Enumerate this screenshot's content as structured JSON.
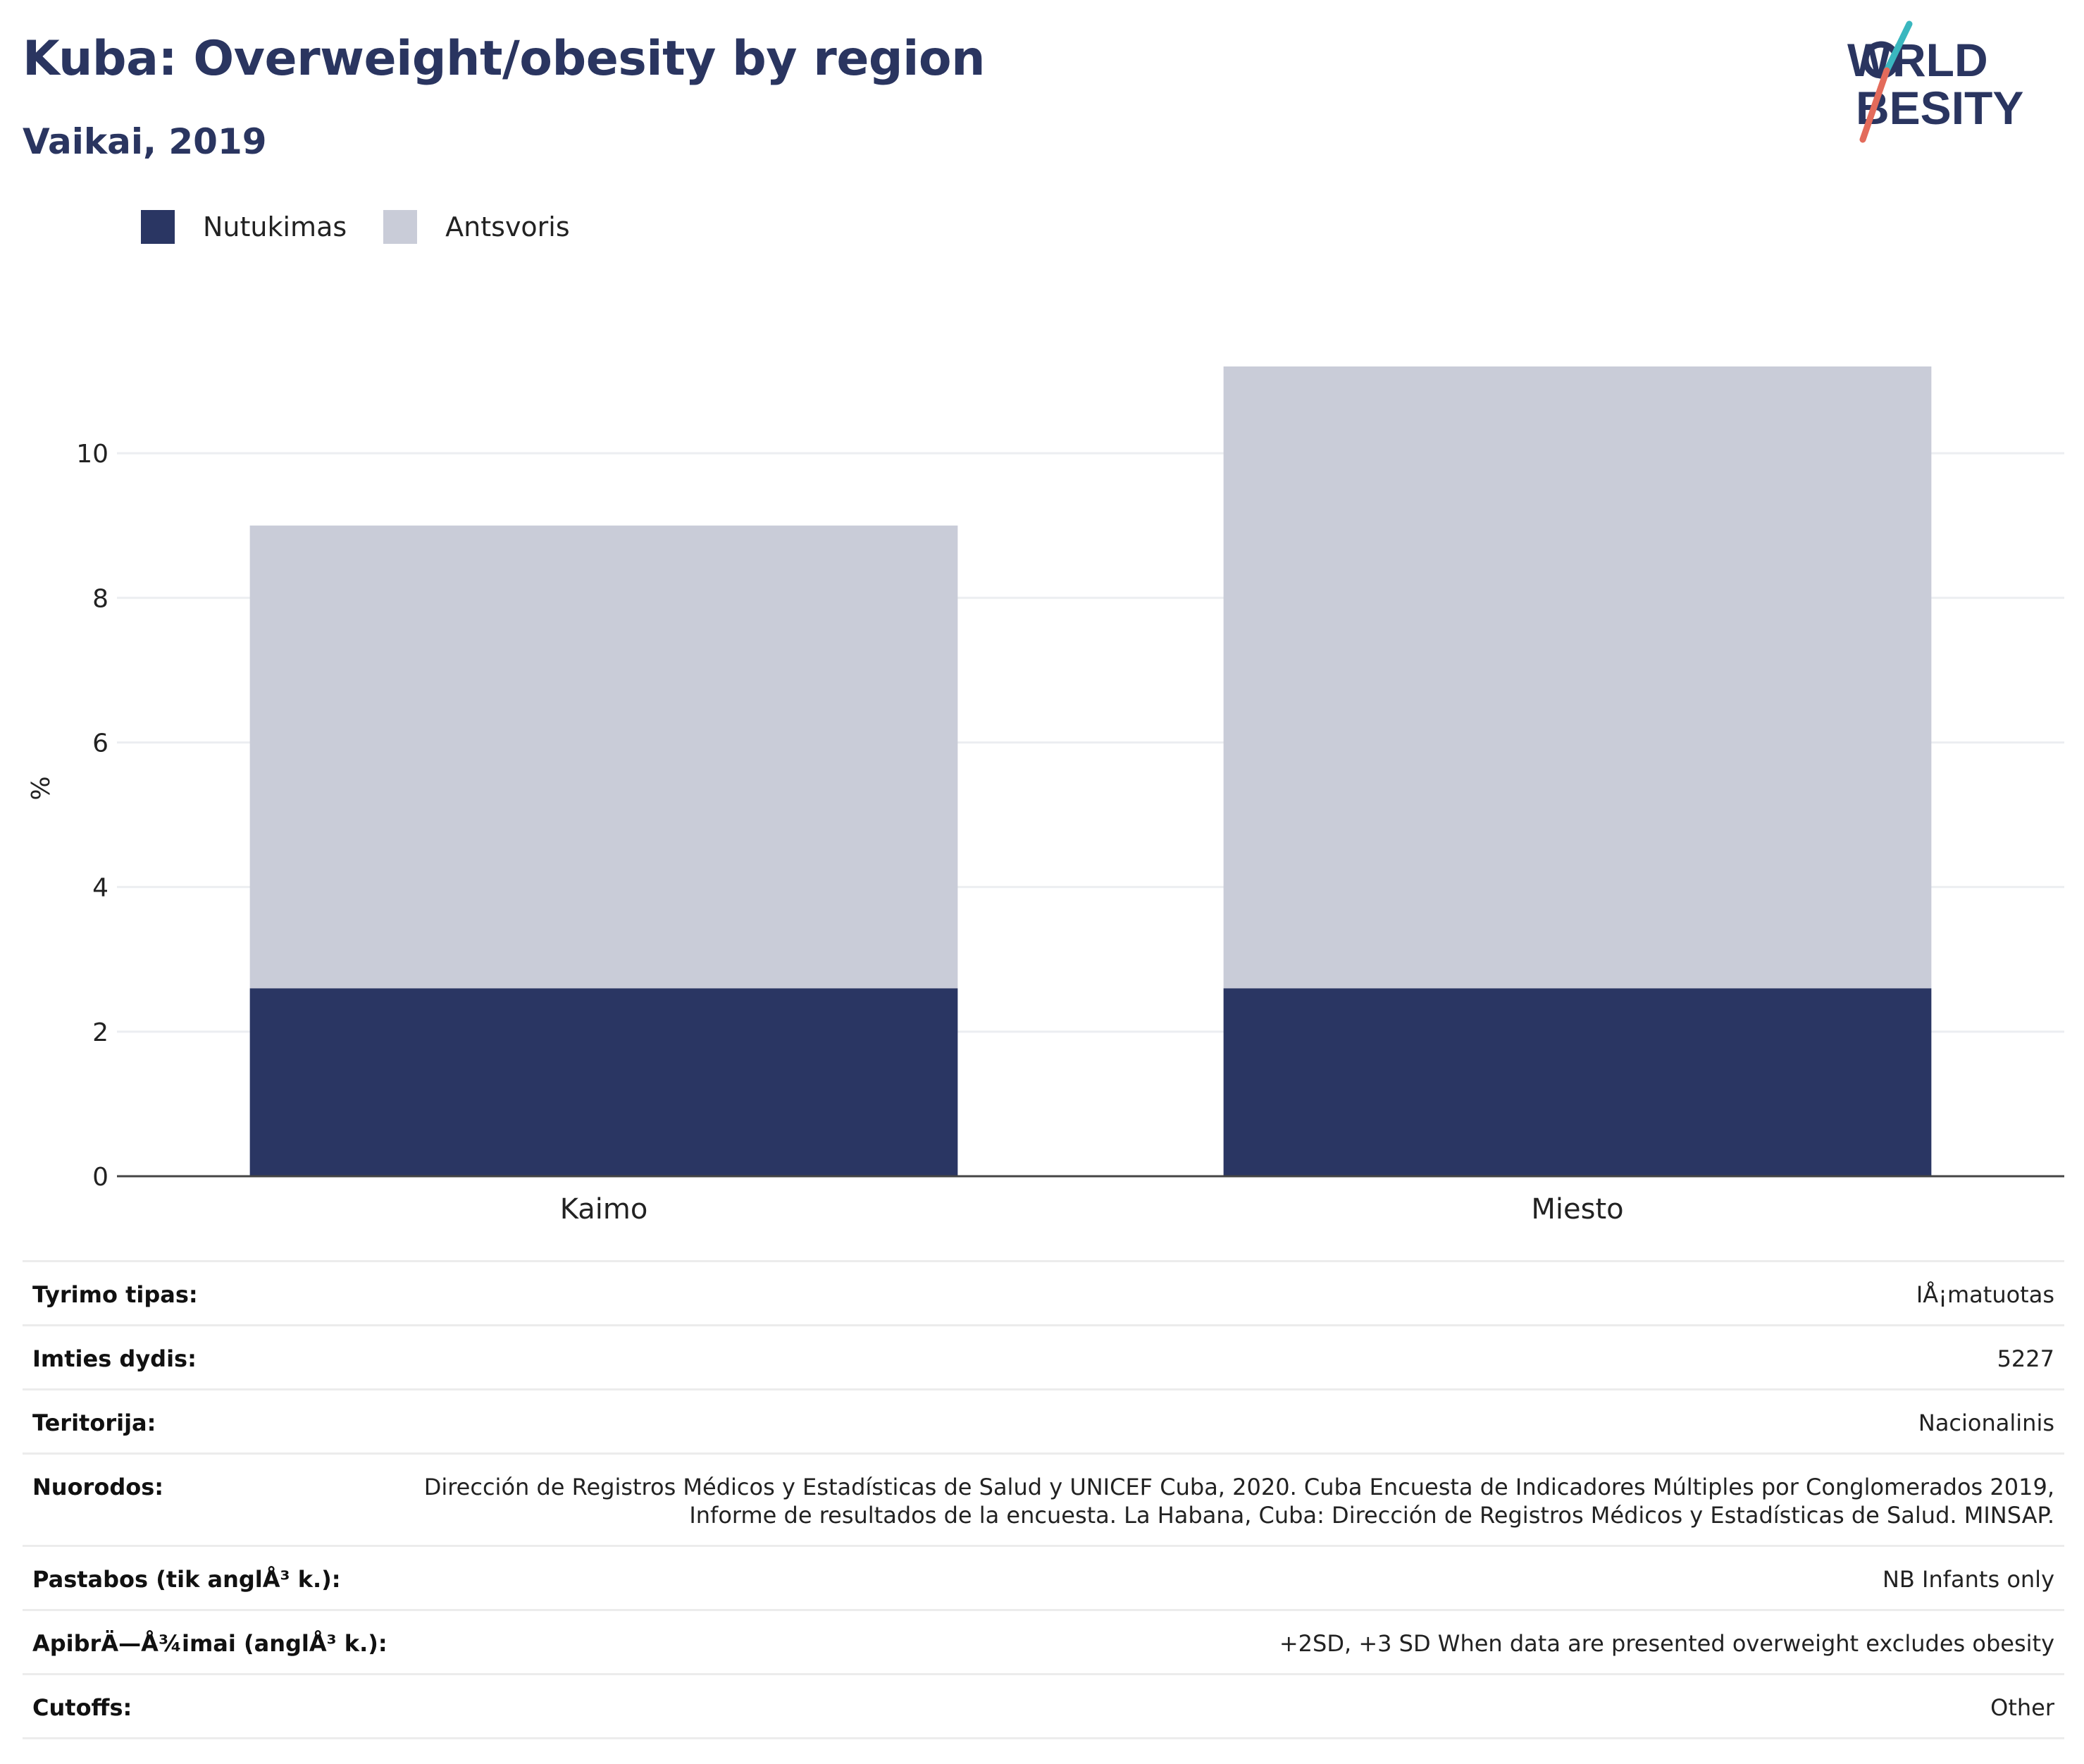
{
  "header": {
    "title": "Kuba: Overweight/obesity by region",
    "subtitle": "Vaikai, 2019"
  },
  "logo": {
    "line1": "WORLD",
    "line2": "OBESITY"
  },
  "colors": {
    "obesity": "#2a3663",
    "overweight": "#c9ccd8",
    "title": "#2a3560",
    "logo_teal": "#3ab7bf",
    "logo_coral": "#e36b5b"
  },
  "legend": {
    "items": [
      {
        "label": "Nutukimas",
        "color": "#2a3663"
      },
      {
        "label": "Antsvoris",
        "color": "#c9ccd8"
      }
    ]
  },
  "chart_data": {
    "type": "bar",
    "stacked": true,
    "categories": [
      "Kaimo",
      "Miesto"
    ],
    "series": [
      {
        "name": "Nutukimas",
        "values": [
          2.6,
          2.6
        ]
      },
      {
        "name": "Antsvoris",
        "values": [
          6.4,
          8.6
        ]
      }
    ],
    "ylabel": "%",
    "ylim": [
      0,
      11.2
    ],
    "yticks": [
      0,
      2,
      4,
      6,
      8,
      10
    ],
    "grid": true,
    "legend_position": "top-left"
  },
  "metadata": [
    {
      "key": "Tyrimo tipas:",
      "value": "IÅ¡matuotas"
    },
    {
      "key": "Imties dydis:",
      "value": "5227"
    },
    {
      "key": "Teritorija:",
      "value": "Nacionalinis"
    },
    {
      "key": "Nuorodos:",
      "value": "Dirección de Registros Médicos y Estadísticas de Salud y UNICEF Cuba, 2020. Cuba Encuesta de Indicadores Múltiples por Conglomerados 2019, Informe de resultados de la encuesta. La Habana, Cuba: Dirección de Registros Médicos y Estadísticas de Salud. MINSAP."
    },
    {
      "key": "Pastabos (tik anglÅ³ k.):",
      "value": "NB Infants only"
    },
    {
      "key": "ApibrÄ—Å¾imai (anglÅ³ k.):",
      "value": "+2SD, +3 SD When data are presented overweight excludes obesity"
    },
    {
      "key": "Cutoffs:",
      "value": "Other"
    }
  ]
}
